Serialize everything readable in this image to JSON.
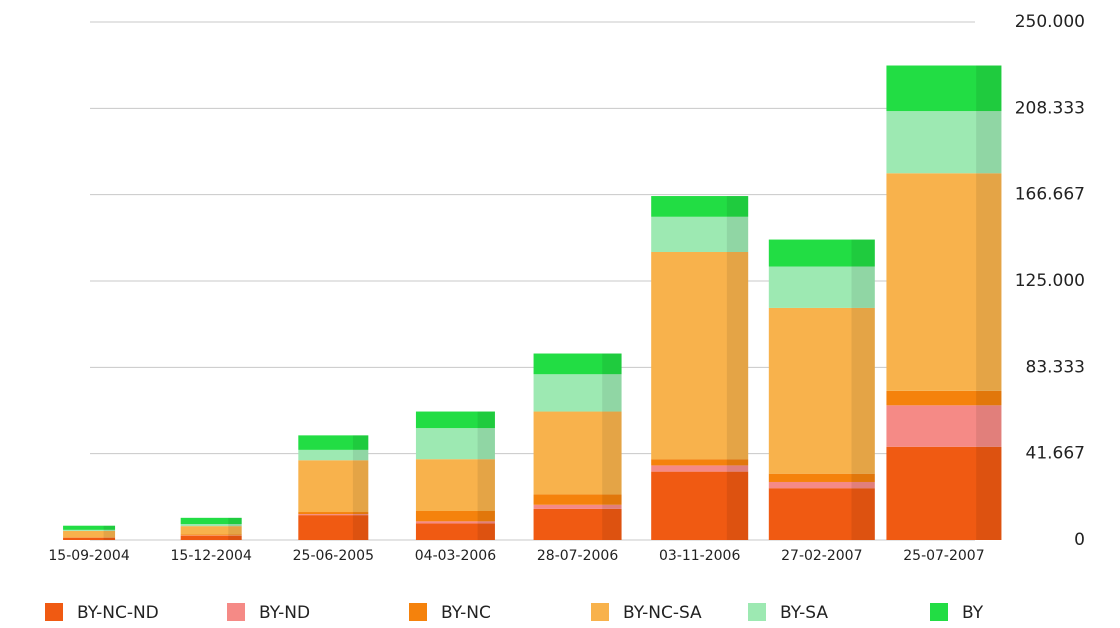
{
  "chart_data": {
    "type": "stacked-bar",
    "categories": [
      "15-09-2004",
      "15-12-2004",
      "25-06-2005",
      "04-03-2006",
      "28-07-2006",
      "03-11-2006",
      "27-02-2007",
      "25-07-2007"
    ],
    "series": [
      {
        "name": "BY-NC-ND",
        "color": "#f05a12",
        "values": [
          1000,
          2000,
          12000,
          8000,
          15000,
          33000,
          25000,
          45000
        ]
      },
      {
        "name": "BY-ND",
        "color": "#f58a86",
        "values": [
          100,
          200,
          500,
          1000,
          2000,
          3000,
          3000,
          20000
        ]
      },
      {
        "name": "BY-NC",
        "color": "#f5820c",
        "values": [
          300,
          500,
          1000,
          5000,
          5000,
          3000,
          4000,
          7000
        ]
      },
      {
        "name": "BY-NC-SA",
        "color": "#f8b24c",
        "values": [
          3000,
          4000,
          25000,
          25000,
          40000,
          100000,
          80000,
          105000
        ]
      },
      {
        "name": "BY-SA",
        "color": "#9de9b2",
        "values": [
          500,
          1000,
          5000,
          15000,
          18000,
          17000,
          20000,
          30000
        ]
      },
      {
        "name": "BY",
        "color": "#22dd44",
        "values": [
          2000,
          3000,
          7000,
          8000,
          10000,
          10000,
          13000,
          22000
        ]
      }
    ],
    "ylim": [
      0,
      250000
    ],
    "yticks": [
      0,
      {
        "value": 41667,
        "label": "41.667"
      },
      {
        "value": 83333,
        "label": "83.333"
      },
      {
        "value": 125000,
        "label": "125.000"
      },
      {
        "value": 166667,
        "label": "166.667"
      },
      {
        "value": 208333,
        "label": "208.333"
      },
      {
        "value": 250000,
        "label": "250.000"
      }
    ],
    "grid": true,
    "legend": "bottom"
  }
}
